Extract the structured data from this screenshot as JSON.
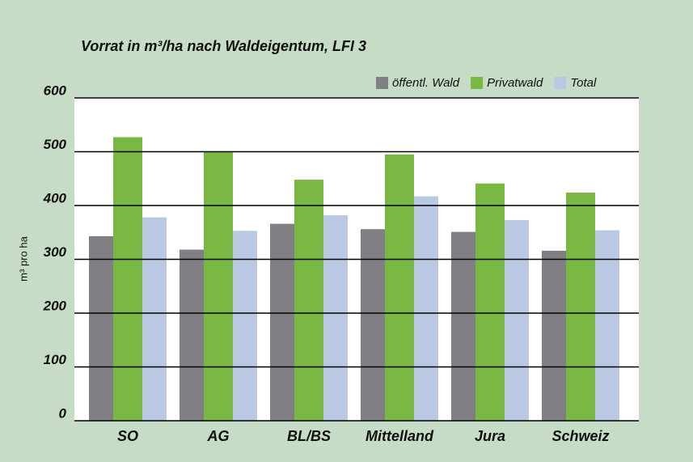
{
  "chart_data": {
    "type": "bar",
    "title": "Vorrat in m³/ha nach Waldeigentum, LFI 3",
    "y_label": "m³ pro ha",
    "categories": [
      "SO",
      "AG",
      "BL/BS",
      "Mittelland",
      "Jura",
      "Schweiz"
    ],
    "series": [
      {
        "name": "öffentl. Wald",
        "color": "#808084",
        "values": [
          343,
          318,
          366,
          356,
          351,
          316
        ]
      },
      {
        "name": "Privatwald",
        "color": "#7ab844",
        "values": [
          527,
          500,
          448,
          495,
          441,
          424
        ]
      },
      {
        "name": "Total",
        "color": "#b9c8e3",
        "values": [
          378,
          353,
          382,
          417,
          373,
          354
        ]
      }
    ],
    "ylim": [
      0,
      600
    ],
    "yticks": [
      0,
      100,
      200,
      300,
      400,
      500,
      600
    ],
    "grid": true,
    "legend": "top-right"
  }
}
